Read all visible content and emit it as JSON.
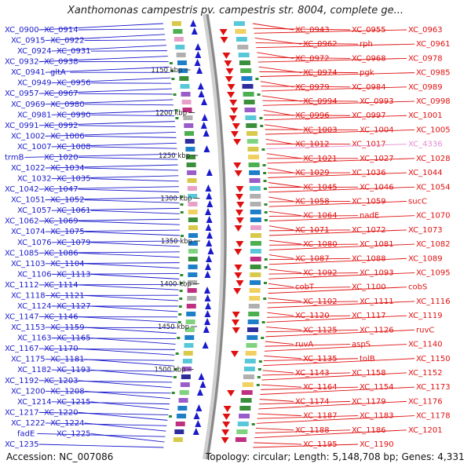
{
  "title": "Xanthomonas campestris pv. campestris str. 8004, complete ge...",
  "footer": {
    "accession": "Accession: NC_007086",
    "summary": "Topology: circular; Length: 5,148,708 bp; Genes: 4,331"
  },
  "colors": {
    "left_strand": "#1a1acc",
    "right_strand": "#e01010",
    "faded_label": "#e88ad0",
    "backbone": "#888888"
  },
  "kbp_ticks": [
    "1150 kbp",
    "1200 kbp",
    "1250 kbp",
    "1300 kbp",
    "1350 kbp",
    "1400 kbp",
    "1450 kbp",
    "1500 kbp"
  ],
  "left_labels": [
    "XC_0900",
    "XC_0914",
    "XC_0915",
    "XC_0922",
    "XC_0924",
    "XC_0931",
    "XC_0932",
    "XC_0938",
    "XC_0941",
    "gltA",
    "XC_0949",
    "XC_0956",
    "XC_0957",
    "XC_0967",
    "XC_0969",
    "XC_0980",
    "XC_0981",
    "XC_0990",
    "XC_0991",
    "XC_0992",
    "XC_1002",
    "XC_1006",
    "XC_1007",
    "XC_1008",
    "trmB",
    "XC_1020",
    "XC_1022",
    "XC_1034",
    "XC_1032",
    "XC_1035",
    "XC_1042",
    "XC_1047",
    "XC_1051",
    "XC_1052",
    "XC_1057",
    "XC_1061",
    "XC_1062",
    "XC_1069",
    "XC_1074",
    "XC_1075",
    "XC_1076",
    "XC_1079",
    "XC_1085",
    "XC_1086",
    "XC_1103",
    "XC_1104",
    "XC_1106",
    "XC_1113",
    "XC_1112",
    "XC_1114",
    "XC_1118",
    "XC_1121",
    "XC_1124",
    "XC_1127",
    "XC_1147",
    "XC_1146",
    "XC_1153",
    "XC_1159",
    "XC_1163",
    "XC_1165",
    "XC_1167",
    "XC_1170",
    "XC_1175",
    "XC_1181",
    "XC_1182",
    "XC_1193",
    "XC_1192",
    "XC_1203",
    "XC_1200",
    "XC_1208",
    "XC_1214",
    "XC_1215",
    "XC_1217",
    "XC_1220",
    "XC_1222",
    "XC_1224",
    "fadE",
    "XC_1225",
    "XC_1235"
  ],
  "right_labels": [
    "XC_0943",
    "XC_0955",
    "XC_0963",
    "XC_0962",
    "rph",
    "XC_0961",
    "XC_0972",
    "XC_0968",
    "XC_0978",
    "XC_0974",
    "pgk",
    "XC_0985",
    "XC_0979",
    "XC_0984",
    "XC_0989",
    "XC_0994",
    "XC_0993",
    "XC_0998",
    "XC_0996",
    "XC_0997",
    "XC_1001",
    "XC_1003",
    "XC_1004",
    "XC_1005",
    "XC_1012",
    "XC_1017",
    "XC_4336",
    "XC_1021",
    "XC_1027",
    "XC_1028",
    "XC_1029",
    "XC_1036",
    "XC_1044",
    "XC_1045",
    "XC_1046",
    "XC_1054",
    "XC_1058",
    "XC_1059",
    "sucC",
    "XC_1064",
    "nadE",
    "XC_1070",
    "XC_1071",
    "XC_1072",
    "XC_1073",
    "XC_1080",
    "XC_1081",
    "XC_1082",
    "XC_1087",
    "XC_1088",
    "XC_1089",
    "XC_1092",
    "XC_1093",
    "XC_1095",
    "cobT",
    "XC_1100",
    "cobS",
    "XC_1102",
    "XC_1111",
    "XC_1116",
    "XC_1120",
    "XC_1117",
    "XC_1119",
    "XC_1125",
    "XC_1126",
    "ruvC",
    "ruvA",
    "aspS",
    "XC_1140",
    "XC_1135",
    "tolB",
    "XC_1150",
    "XC_1143",
    "XC_1158",
    "XC_1152",
    "XC_1164",
    "XC_1154",
    "XC_1173",
    "XC_1174",
    "XC_1179",
    "XC_1176",
    "XC_1187",
    "XC_1183",
    "XC_1178",
    "XC_1188",
    "XC_1186",
    "XC_1201",
    "XC_1195",
    "XC_1190"
  ]
}
